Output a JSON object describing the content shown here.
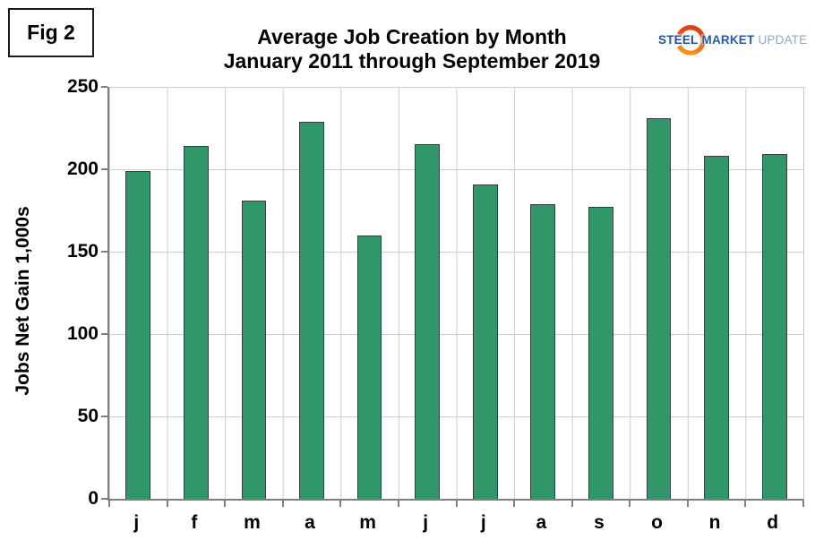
{
  "figure": {
    "label": "Fig 2"
  },
  "logo": {
    "steel": "STEEL",
    "market": "MARKET",
    "update": "UPDATE",
    "steel_color": "#1d4f9e",
    "market_color": "#2a5aa4",
    "update_color": "#8fa6c6",
    "crescent_colors": [
      "#df3a12",
      "#ec6317",
      "#f6a623"
    ]
  },
  "chart_data": {
    "type": "bar",
    "title": "Average Job Creation by Month",
    "subtitle": "January 2011 through September 2019",
    "categories": [
      "j",
      "f",
      "m",
      "a",
      "m",
      "j",
      "j",
      "a",
      "s",
      "o",
      "n",
      "d"
    ],
    "values": [
      199,
      214,
      181,
      229,
      160,
      215,
      191,
      179,
      177,
      231,
      208,
      209
    ],
    "xlabel": "",
    "ylabel": "Jobs Net Gain 1,000s",
    "ylim": [
      0,
      250
    ],
    "ytick_step": 50,
    "yticks": [
      0,
      50,
      100,
      150,
      200,
      250
    ],
    "grid": true,
    "legend": "none",
    "bar_color": "#2f9769",
    "bar_border_color": "#3c3c3c",
    "gridline_color": "#cdcdcd",
    "axis_color": "#7f7f7f"
  }
}
